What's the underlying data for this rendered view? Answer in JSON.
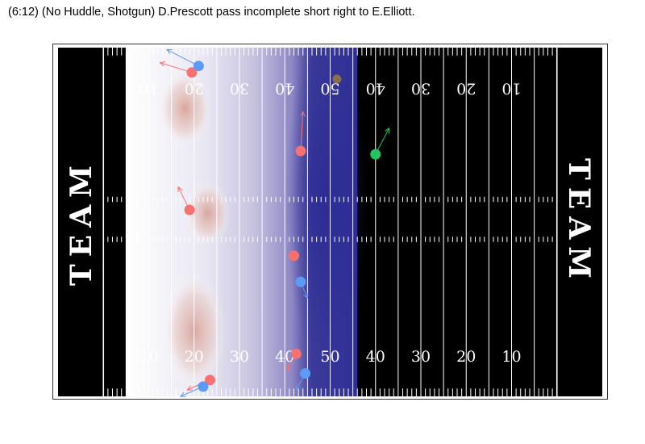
{
  "chart_data": {
    "type": "scatter",
    "title": "(6:12) (No Huddle, Shotgun) D.Prescott pass incomplete short right to E.Elliott.",
    "field": {
      "field_color": "#000000",
      "line_color": "#ffffff",
      "endzone_text_left": "TEAM",
      "endzone_text_right": "TEAM",
      "bottom_numbers": [
        {
          "yard": 20,
          "label": "10"
        },
        {
          "yard": 30,
          "label": "20"
        },
        {
          "yard": 40,
          "label": "30"
        },
        {
          "yard": 50,
          "label": "40"
        },
        {
          "yard": 60,
          "label": "50"
        },
        {
          "yard": 70,
          "label": "40"
        },
        {
          "yard": 80,
          "label": "30"
        },
        {
          "yard": 90,
          "label": "20"
        },
        {
          "yard": 100,
          "label": "10"
        }
      ],
      "top_numbers": [
        {
          "yard": 20,
          "label": "10"
        },
        {
          "yard": 30,
          "label": "20"
        },
        {
          "yard": 40,
          "label": "30"
        },
        {
          "yard": 50,
          "label": "40"
        },
        {
          "yard": 60,
          "label": "50"
        },
        {
          "yard": 70,
          "label": "40"
        },
        {
          "yard": 80,
          "label": "30"
        },
        {
          "yard": 90,
          "label": "20"
        },
        {
          "yard": 100,
          "label": "10"
        }
      ],
      "xlim": [
        0,
        120
      ],
      "ylim": [
        0,
        53.3
      ]
    },
    "density_band": {
      "x_range": [
        15,
        66
      ],
      "color_high": "#2e2e96",
      "color_low": "#d9a6a6"
    },
    "density_blobs": [
      {
        "x": 30,
        "y": 10,
        "rx": 7,
        "ry": 9,
        "team": "red"
      },
      {
        "x": 28,
        "y": 44,
        "rx": 6,
        "ry": 6,
        "team": "red"
      },
      {
        "x": 33,
        "y": 28,
        "rx": 5,
        "ry": 5,
        "team": "red"
      },
      {
        "x": 59,
        "y": 30,
        "rx": 9,
        "ry": 25,
        "team": "blue"
      }
    ],
    "series": [
      {
        "color": "#f87171",
        "points": [
          {
            "x": 29.5,
            "y": 49.5,
            "dx": -7,
            "dy": 1.5
          },
          {
            "x": 53.5,
            "y": 37.5,
            "dx": 0.5,
            "dy": 6
          },
          {
            "x": 29,
            "y": 28.5,
            "dx": -2.5,
            "dy": 3.5
          },
          {
            "x": 52,
            "y": 21.5,
            "dx": 0,
            "dy": 0
          },
          {
            "x": 52.5,
            "y": 6.5,
            "dx": -2,
            "dy": -2.5
          },
          {
            "x": 33.5,
            "y": 2.5,
            "dx": -5,
            "dy": -1.5
          }
        ]
      },
      {
        "color": "#5b9bf8",
        "points": [
          {
            "x": 31,
            "y": 50.5,
            "dx": -7,
            "dy": 2.5
          },
          {
            "x": 53.5,
            "y": 17.5,
            "dx": 1.5,
            "dy": -2.5
          },
          {
            "x": 54.5,
            "y": 3.5,
            "dx": -2,
            "dy": -2.5
          },
          {
            "x": 32,
            "y": 1.5,
            "dx": -5,
            "dy": -1.5
          }
        ]
      },
      {
        "color": "#22c55e",
        "points": [
          {
            "x": 70,
            "y": 37,
            "dx": 3,
            "dy": 4
          }
        ]
      }
    ],
    "ball": {
      "x": 61.5,
      "y": 48.5,
      "color": "#8b6d4b"
    },
    "scrimmage_line_x": 61.5
  }
}
